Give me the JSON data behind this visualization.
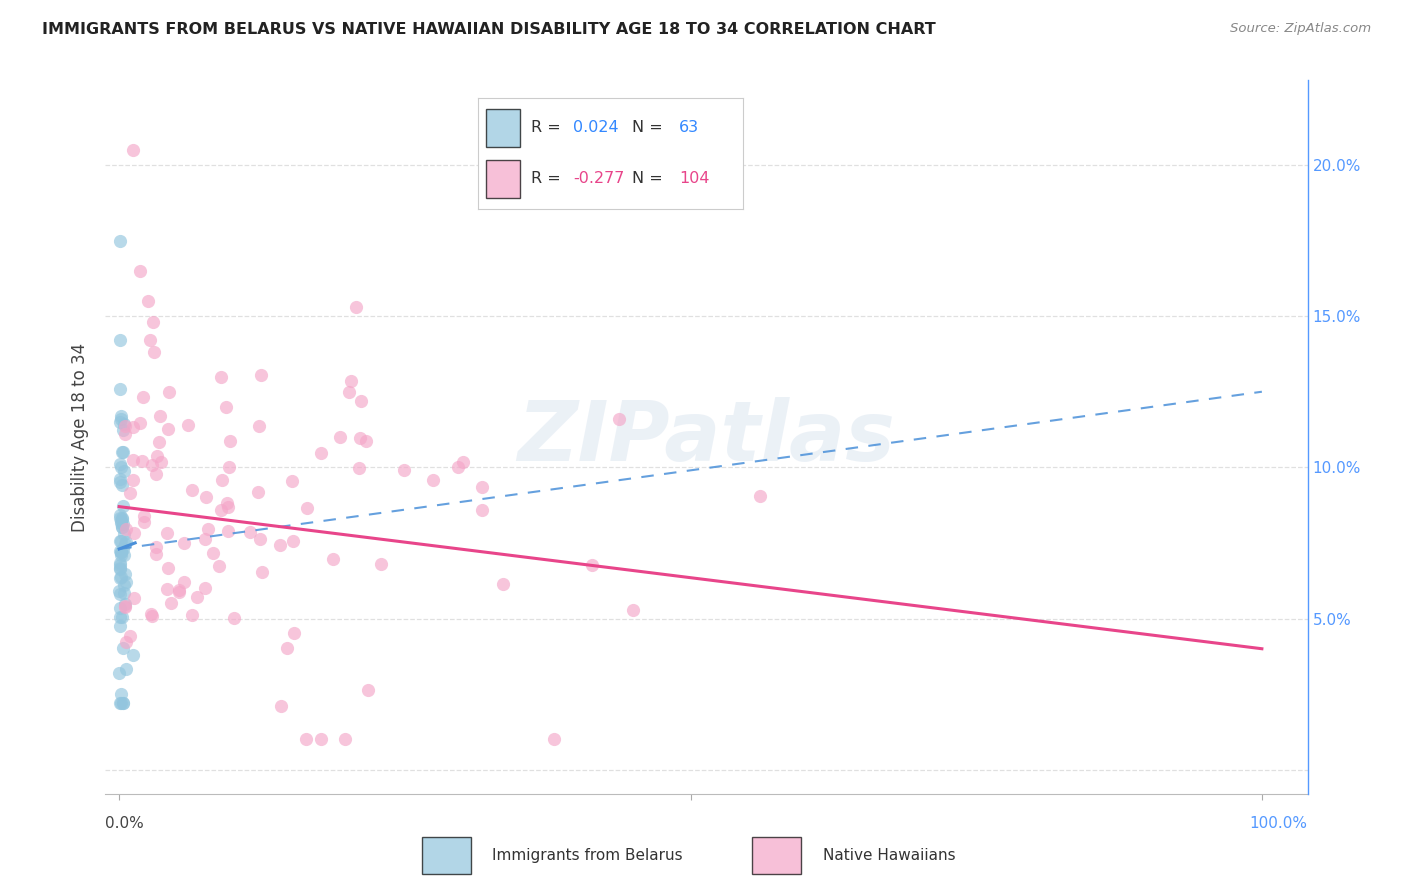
{
  "title": "IMMIGRANTS FROM BELARUS VS NATIVE HAWAIIAN DISABILITY AGE 18 TO 34 CORRELATION CHART",
  "source": "Source: ZipAtlas.com",
  "ylabel": "Disability Age 18 to 34",
  "blue_color": "#92c5de",
  "pink_color": "#f4a6c8",
  "blue_line_color": "#4a90d9",
  "pink_line_color": "#e8458a",
  "r_blue": "0.024",
  "n_blue": "63",
  "r_pink": "-0.277",
  "n_pink": "104",
  "legend_val_color_blue": "#3388ff",
  "legend_val_color_pink": "#e8458a",
  "watermark_color": "#d0dde8",
  "grid_color": "#dddddd",
  "right_axis_color": "#5599ff",
  "background": "#ffffff",
  "title_color": "#222222",
  "label_color": "#444444"
}
